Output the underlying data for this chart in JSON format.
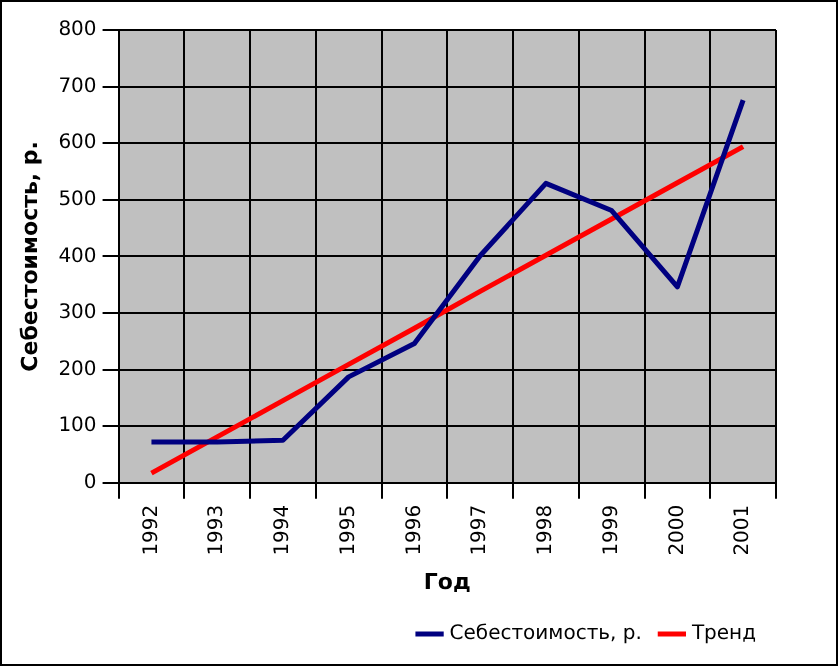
{
  "chart_data": {
    "type": "line",
    "xlabel": "Год",
    "ylabel": "Себестоимость, р.",
    "categories": [
      "1992",
      "1993",
      "1994",
      "1995",
      "1996",
      "1997",
      "1998",
      "1999",
      "2000",
      "2001"
    ],
    "series": [
      {
        "name": "Себестоимость, р.",
        "color": "#000080",
        "values": [
          72,
          72,
          75,
          187,
          246,
          401,
          529,
          481,
          346,
          676
        ]
      },
      {
        "name": "Тренд",
        "color": "#ff0000",
        "values": [
          17,
          81,
          145,
          209,
          273,
          338,
          402,
          466,
          530,
          594
        ]
      }
    ],
    "ylim": [
      0,
      800
    ],
    "yticks": [
      0,
      100,
      200,
      300,
      400,
      500,
      600,
      700,
      800
    ],
    "grid": true,
    "legend": "bottom right",
    "marker": "none",
    "line_style": "solid"
  }
}
